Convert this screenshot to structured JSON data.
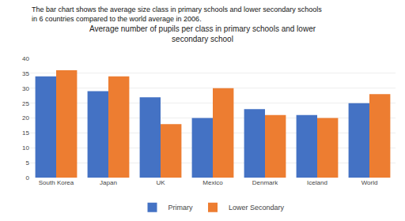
{
  "chart_data": {
    "type": "bar",
    "title": "Average number of pupils per class in primary schools and lower\nsecondary school",
    "subtitle": "The bar chart shows the average size class in primary schools and lower secondary schools\nin 6 countries compared to the world average in 2006.",
    "categories": [
      "South Korea",
      "Japan",
      "UK",
      "Mexico",
      "Denmark",
      "Iceland",
      "World"
    ],
    "series": [
      {
        "name": "Primary",
        "color": "#4472C4",
        "values": [
          34,
          29,
          27,
          20,
          23,
          21,
          25
        ]
      },
      {
        "name": "Lower Secondary",
        "color": "#ED7D31",
        "values": [
          36,
          34,
          18,
          30,
          21,
          20,
          28
        ]
      }
    ],
    "ylim": [
      0,
      40
    ],
    "yticks": [
      0,
      5,
      10,
      15,
      20,
      25,
      30,
      35,
      40
    ],
    "grid": true,
    "legend": "bottom"
  }
}
